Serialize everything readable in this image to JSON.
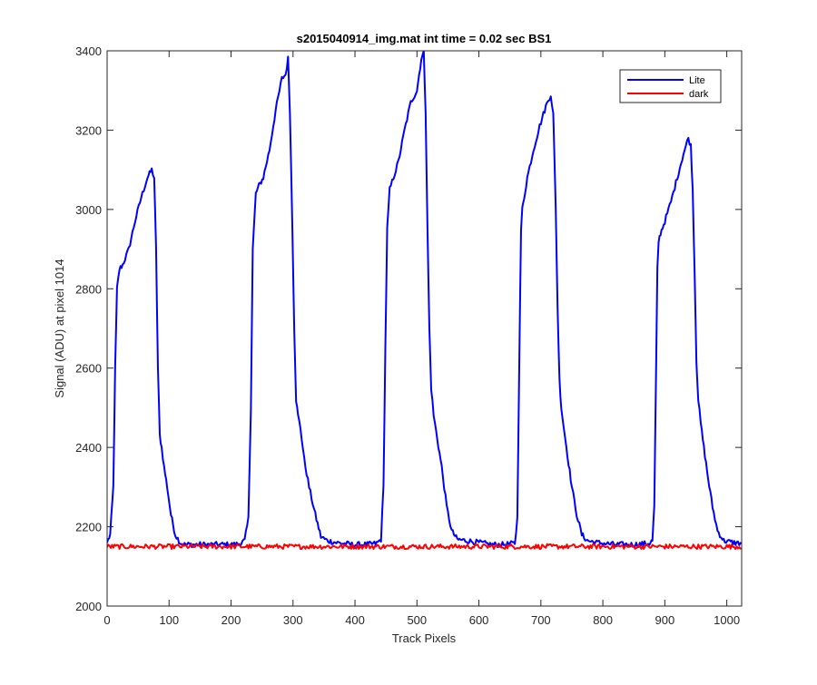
{
  "chart_data": {
    "type": "line",
    "title": "s2015040914_img.mat int time = 0.02 sec   BS1",
    "xlabel": "Track Pixels",
    "ylabel": "Signal (ADU) at pixel 1014",
    "xlim": [
      0,
      1024
    ],
    "ylim": [
      2000,
      3400
    ],
    "xticks": [
      0,
      100,
      200,
      300,
      400,
      500,
      600,
      700,
      800,
      900,
      1000
    ],
    "yticks": [
      2000,
      2200,
      2400,
      2600,
      2800,
      3000,
      3200,
      3400
    ],
    "xtick_labels": [
      "0",
      "100",
      "200",
      "300",
      "400",
      "500",
      "600",
      "700",
      "800",
      "900",
      "1000"
    ],
    "ytick_labels": [
      "2000",
      "2200",
      "2400",
      "2600",
      "2800",
      "3000",
      "3200",
      "3400"
    ],
    "grid": false,
    "legend_position": "top-right",
    "series": [
      {
        "name": "Lite",
        "color": "#0000ff",
        "x": [
          0,
          5,
          10,
          13,
          16,
          20,
          25,
          35,
          45,
          55,
          65,
          72,
          76,
          79,
          82,
          85,
          88,
          92,
          97,
          103,
          110,
          118,
          125,
          135,
          150,
          170,
          190,
          205,
          215,
          222,
          228,
          232,
          235,
          240,
          245,
          252,
          262,
          272,
          282,
          288,
          292,
          295,
          299,
          302,
          305,
          308,
          312,
          318,
          326,
          336,
          345,
          355,
          370,
          395,
          420,
          435,
          442,
          446,
          449,
          452,
          456,
          462,
          470,
          480,
          490,
          500,
          507,
          511,
          514,
          517,
          520,
          523,
          527,
          533,
          540,
          548,
          556,
          565,
          580,
          600,
          620,
          640,
          658,
          662,
          665,
          668,
          670,
          673,
          678,
          688,
          698,
          708,
          716,
          720,
          724,
          727,
          730,
          733,
          737,
          743,
          750,
          758,
          766,
          775,
          790,
          820,
          850,
          875,
          880,
          883,
          886,
          888,
          890,
          893,
          900,
          910,
          920,
          930,
          938,
          942,
          945,
          948,
          951,
          954,
          958,
          963,
          970,
          977,
          985,
          995,
          1010,
          1024
        ],
        "y": [
          2160,
          2180,
          2300,
          2600,
          2800,
          2850,
          2860,
          2900,
          2970,
          3030,
          3080,
          3100,
          3080,
          2900,
          2600,
          2430,
          2400,
          2350,
          2300,
          2230,
          2180,
          2160,
          2155,
          2155,
          2155,
          2155,
          2155,
          2155,
          2158,
          2165,
          2220,
          2500,
          2900,
          3040,
          3060,
          3080,
          3150,
          3250,
          3330,
          3340,
          3380,
          3250,
          2950,
          2700,
          2520,
          2480,
          2450,
          2370,
          2300,
          2230,
          2175,
          2165,
          2160,
          2155,
          2155,
          2158,
          2168,
          2300,
          2650,
          2950,
          3050,
          3080,
          3120,
          3200,
          3270,
          3300,
          3380,
          3395,
          3250,
          2950,
          2700,
          2550,
          2480,
          2420,
          2350,
          2250,
          2190,
          2168,
          2165,
          2160,
          2155,
          2155,
          2158,
          2220,
          2600,
          2950,
          3000,
          3030,
          3080,
          3150,
          3210,
          3260,
          3290,
          3240,
          3000,
          2750,
          2570,
          2500,
          2450,
          2380,
          2300,
          2230,
          2180,
          2165,
          2160,
          2155,
          2155,
          2158,
          2165,
          2250,
          2600,
          2850,
          2920,
          2940,
          2970,
          3020,
          3080,
          3140,
          3180,
          3160,
          3050,
          2850,
          2620,
          2520,
          2460,
          2400,
          2320,
          2250,
          2190,
          2165,
          2160,
          2158
        ]
      },
      {
        "name": "dark",
        "color": "#ff0000",
        "x": [
          0,
          1024
        ],
        "y": [
          2150,
          2150
        ],
        "noise": 6
      }
    ]
  }
}
